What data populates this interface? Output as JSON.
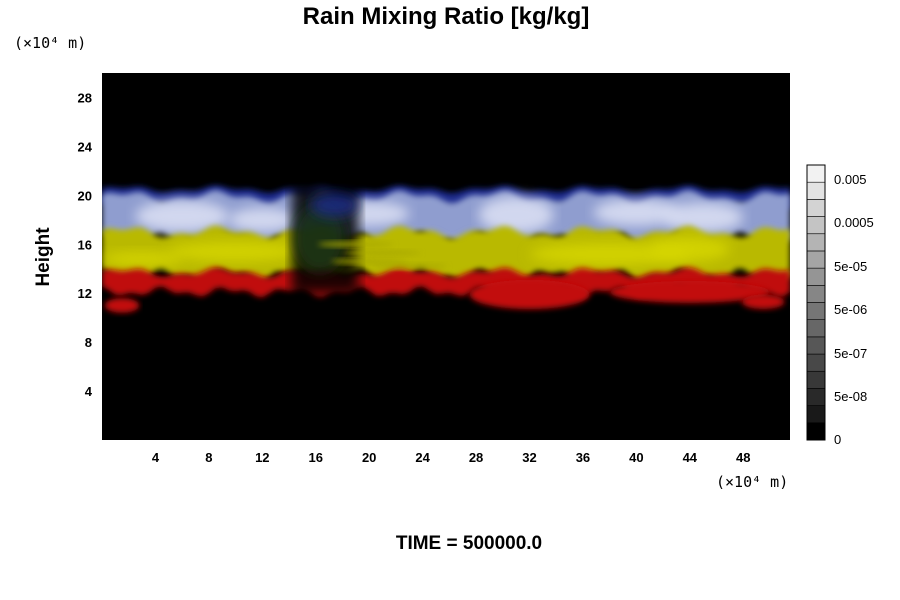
{
  "chart_data": {
    "type": "heatmap",
    "title": "Rain Mixing Ratio [kg/kg]",
    "ylabel": "Height",
    "x_unit": "(×10⁴ m)",
    "y_unit": "(×10⁴ m)",
    "x_ticks": [
      "4",
      "8",
      "12",
      "16",
      "20",
      "24",
      "28",
      "32",
      "36",
      "40",
      "44",
      "48"
    ],
    "y_ticks": [
      "4",
      "8",
      "12",
      "16",
      "20",
      "24",
      "28"
    ],
    "xlim": [
      0,
      51.5
    ],
    "ylim": [
      0,
      30
    ],
    "colorbar": {
      "scale": "log",
      "labels": [
        "0.005",
        "0.0005",
        "5e-05",
        "5e-06",
        "5e-07",
        "5e-08",
        "0"
      ],
      "levels": 16
    },
    "layers": [
      {
        "name": "blue/white",
        "y_range": [
          16.5,
          20.5
        ],
        "color": "#aab4dd"
      },
      {
        "name": "yellow",
        "y_range": [
          13.5,
          17
        ],
        "color": "#c8c800"
      },
      {
        "name": "red",
        "y_range": [
          10.5,
          14
        ],
        "color": "#cc0a0a"
      }
    ],
    "background": "#000000"
  },
  "footer": {
    "time_label": "TIME = 500000.0"
  }
}
